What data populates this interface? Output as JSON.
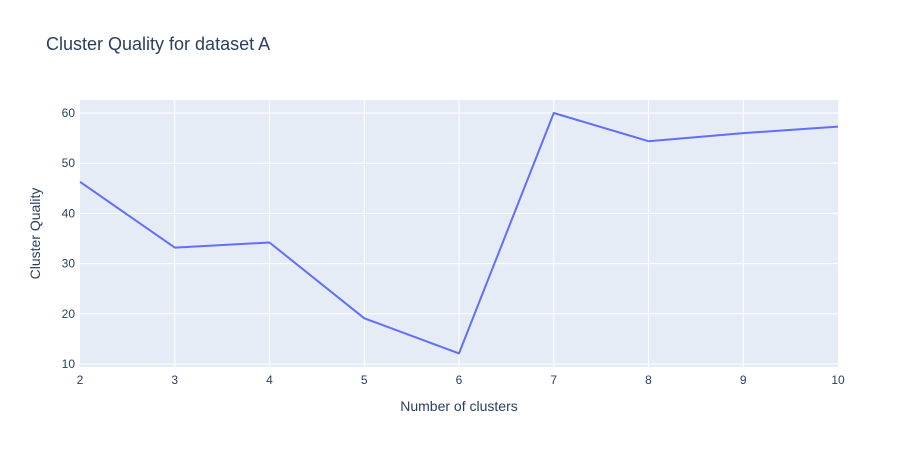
{
  "chart_data": {
    "type": "line",
    "title": "Cluster Quality for dataset A",
    "xlabel": "Number of clusters",
    "ylabel": "Cluster Quality",
    "x": [
      2,
      3,
      4,
      5,
      6,
      7,
      8,
      9,
      10
    ],
    "series": [
      {
        "values": [
          46.3,
          33.2,
          34.2,
          19.1,
          12.1,
          60.0,
          54.4,
          56.0,
          57.3
        ]
      }
    ],
    "xlim": [
      2,
      10
    ],
    "ylim": [
      9.4,
      62.6
    ],
    "xticks": [
      2,
      3,
      4,
      5,
      6,
      7,
      8,
      9,
      10
    ],
    "yticks": [
      10,
      20,
      30,
      40,
      50,
      60
    ],
    "grid": true,
    "legend": "none",
    "colors": {
      "plot_background": "#e5ecf6",
      "grid": "#ffffff",
      "line": "#636efa",
      "text": "#2a3f5f"
    }
  }
}
